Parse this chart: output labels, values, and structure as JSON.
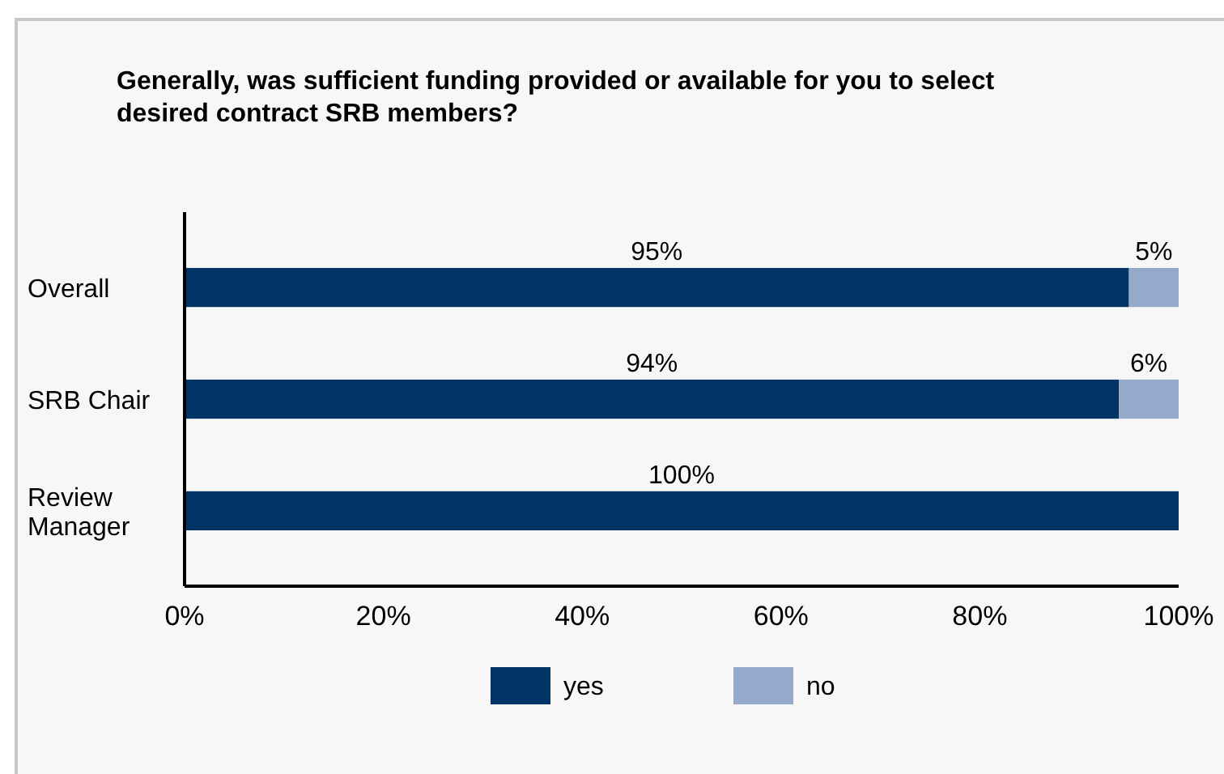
{
  "chart_data": {
    "type": "bar",
    "orientation": "horizontal",
    "stacked": true,
    "title": "Generally, was sufficient funding provided or available for you to select desired contract SRB members?",
    "categories": [
      "Overall",
      "SRB Chair",
      "Review Manager"
    ],
    "series": [
      {
        "name": "yes",
        "color": "#003366",
        "values": [
          95,
          94,
          100
        ],
        "value_labels": [
          "95%",
          "94%",
          "100%"
        ]
      },
      {
        "name": "no",
        "color": "#95aacb",
        "values": [
          5,
          6,
          0
        ],
        "value_labels": [
          "5%",
          "6%",
          null
        ]
      }
    ],
    "xlim": [
      0,
      100
    ],
    "xticks": [
      {
        "value": 0,
        "label": "0%"
      },
      {
        "value": 20,
        "label": "20%"
      },
      {
        "value": 40,
        "label": "40%"
      },
      {
        "value": 60,
        "label": "60%"
      },
      {
        "value": 80,
        "label": "80%"
      },
      {
        "value": 100,
        "label": "100%"
      }
    ],
    "grid": false,
    "legend": "bottom"
  }
}
